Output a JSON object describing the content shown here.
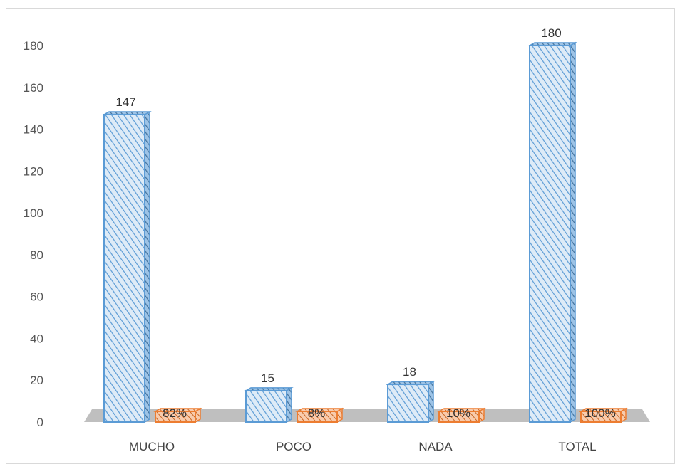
{
  "chart_data": {
    "type": "bar",
    "variant": "3d-clustered",
    "categories": [
      "MUCHO",
      "POCO",
      "NADA",
      "TOTAL"
    ],
    "series": [
      {
        "values": [
          147,
          15,
          18,
          180
        ],
        "labels": [
          "147",
          "15",
          "18",
          "180"
        ],
        "color": "#5B9BD5"
      },
      {
        "values": [
          82,
          8,
          10,
          100
        ],
        "labels": [
          "82%",
          "8%",
          "10%",
          "100%"
        ],
        "color": "#ED7D31"
      }
    ],
    "ylim": [
      0,
      180
    ],
    "yticks": [
      0,
      20,
      40,
      60,
      80,
      100,
      120,
      140,
      160,
      180
    ],
    "grid": false,
    "legend": "none",
    "colors": {
      "floor": "#BFBFBF",
      "frame": "#D9D9D9"
    }
  }
}
